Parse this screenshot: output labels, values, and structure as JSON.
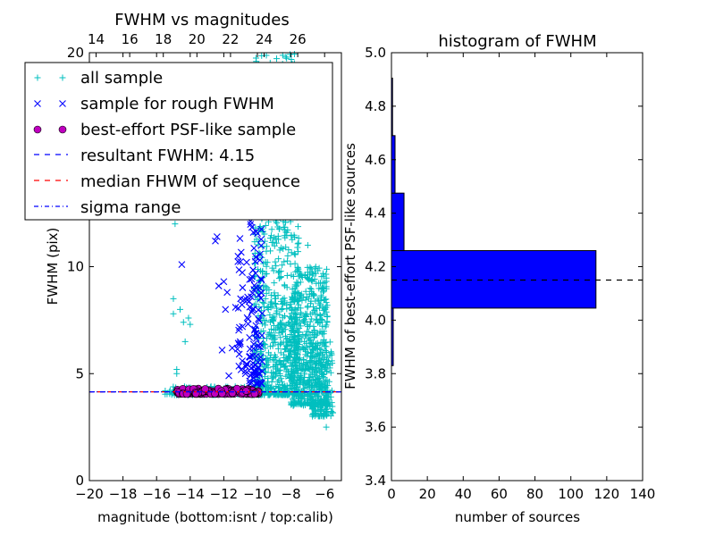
{
  "chart_data": [
    {
      "type": "scatter",
      "title": "FWHM vs magnitudes",
      "xlabel": "magnitude (bottom:isnt / top:calib)",
      "ylabel": "FWHM (pix)",
      "xlim": [
        -20,
        -5
      ],
      "ylim": [
        0,
        20
      ],
      "xticks": [
        -20,
        -18,
        -16,
        -14,
        -12,
        -10,
        -8,
        -6
      ],
      "xticklabels": [
        "−20",
        "−18",
        "−16",
        "−14",
        "−12",
        "−10",
        "−8",
        "−6"
      ],
      "yticks": [
        0,
        5,
        10,
        20
      ],
      "yticklabels": [
        "0",
        "5",
        "10",
        "20"
      ],
      "top_xticks": [
        14,
        16,
        18,
        20,
        22,
        24,
        26
      ],
      "top_xticklabels": [
        "14",
        "16",
        "18",
        "20",
        "22",
        "24",
        "26"
      ],
      "top_axis_offset": 33.6,
      "grid": false,
      "legend_position": "top-left",
      "series": [
        {
          "name": "all sample",
          "marker": "+",
          "color": "#00bfbf",
          "clusters": [
            {
              "x_range": [
                -10.2,
                -7.5
              ],
              "y_range": [
                4.0,
                20.0
              ],
              "n": 900
            },
            {
              "x_range": [
                -8.0,
                -5.8
              ],
              "y_range": [
                3.5,
                10.0
              ],
              "n": 600
            },
            {
              "x_range": [
                -6.8,
                -5.5
              ],
              "y_range": [
                3.0,
                6.5
              ],
              "n": 150
            },
            {
              "x_range": [
                -15.5,
                -10.3
              ],
              "y_range": [
                4.0,
                4.4
              ],
              "n": 120
            }
          ],
          "points": [
            {
              "x": -14.8,
              "y": 5.2
            },
            {
              "x": -14.8,
              "y": 5.0
            },
            {
              "x": -15.0,
              "y": 8.5
            },
            {
              "x": -14.6,
              "y": 8.0
            },
            {
              "x": -15.0,
              "y": 7.8
            },
            {
              "x": -14.4,
              "y": 7.4
            },
            {
              "x": -14.1,
              "y": 7.6
            },
            {
              "x": -14.0,
              "y": 7.3
            },
            {
              "x": -14.3,
              "y": 6.5
            },
            {
              "x": -14.9,
              "y": 12.0
            },
            {
              "x": -5.9,
              "y": 2.5
            },
            {
              "x": -8.3,
              "y": 19.8
            },
            {
              "x": -7.8,
              "y": 19.5
            },
            {
              "x": -7.4,
              "y": 19.3
            },
            {
              "x": -7.1,
              "y": 13.5
            },
            {
              "x": -7.0,
              "y": 11.0
            }
          ]
        },
        {
          "name": "sample for rough FWHM",
          "marker": "x",
          "color": "#0000ff",
          "clusters": [
            {
              "x_range": [
                -10.5,
                -9.7
              ],
              "y_range": [
                4.5,
                15.0
              ],
              "n": 110
            },
            {
              "x_range": [
                -11.2,
                -10.4
              ],
              "y_range": [
                5.0,
                12.0
              ],
              "n": 35
            }
          ],
          "points": [
            {
              "x": -14.5,
              "y": 10.1
            },
            {
              "x": -12.5,
              "y": 11.2
            },
            {
              "x": -12.4,
              "y": 11.4
            },
            {
              "x": -12.3,
              "y": 9.1
            },
            {
              "x": -11.9,
              "y": 8.0
            },
            {
              "x": -11.8,
              "y": 8.8
            },
            {
              "x": -11.5,
              "y": 6.2
            },
            {
              "x": -12.0,
              "y": 9.3
            },
            {
              "x": -11.3,
              "y": 8.1
            },
            {
              "x": -12.1,
              "y": 6.1
            },
            {
              "x": -11.7,
              "y": 4.9
            },
            {
              "x": -11.0,
              "y": 8.5
            }
          ]
        },
        {
          "name": "best-effort PSF-like sample",
          "marker": "o",
          "color": "#bf00bf",
          "clusters": [
            {
              "x_range": [
                -14.8,
                -9.9
              ],
              "y_range": [
                4.05,
                4.3
              ],
              "n": 160
            }
          ]
        },
        {
          "name": "resultant FWHM: 4.15",
          "line_style": "dashed",
          "color": "#0000ff",
          "y": 4.15
        },
        {
          "name": "median FHWM of sequence",
          "line_style": "dashed",
          "color": "#ff0000",
          "y": 4.15
        },
        {
          "name": "sigma range",
          "line_style": "dashdot",
          "color": "#0000ff",
          "y": 4.15
        }
      ]
    },
    {
      "type": "bar",
      "orientation": "horizontal",
      "title": "histogram of FWHM",
      "xlabel": "number of sources",
      "ylabel": "FWHM of best-effort PSF-like sources",
      "xlim": [
        0,
        140
      ],
      "ylim": [
        3.4,
        5.0
      ],
      "xticks": [
        0,
        20,
        40,
        60,
        80,
        100,
        120,
        140
      ],
      "yticks": [
        3.4,
        3.6,
        3.8,
        4.0,
        4.2,
        4.4,
        4.6,
        4.8,
        5.0
      ],
      "yticklabels": [
        "3.4",
        "3.6",
        "3.8",
        "4.0",
        "4.2",
        "4.4",
        "4.6",
        "4.8",
        "5.0"
      ],
      "grid": false,
      "bar_color": "#0000ff",
      "bins": [
        {
          "y0": 3.83,
          "y1": 4.045,
          "count": 1
        },
        {
          "y0": 4.045,
          "y1": 4.26,
          "count": 114
        },
        {
          "y0": 4.26,
          "y1": 4.475,
          "count": 7
        },
        {
          "y0": 4.475,
          "y1": 4.69,
          "count": 2
        },
        {
          "y0": 4.69,
          "y1": 4.905,
          "count": 0.3
        }
      ],
      "reference_line": {
        "y": 4.15,
        "style": "dashed",
        "color": "#000000"
      }
    }
  ]
}
